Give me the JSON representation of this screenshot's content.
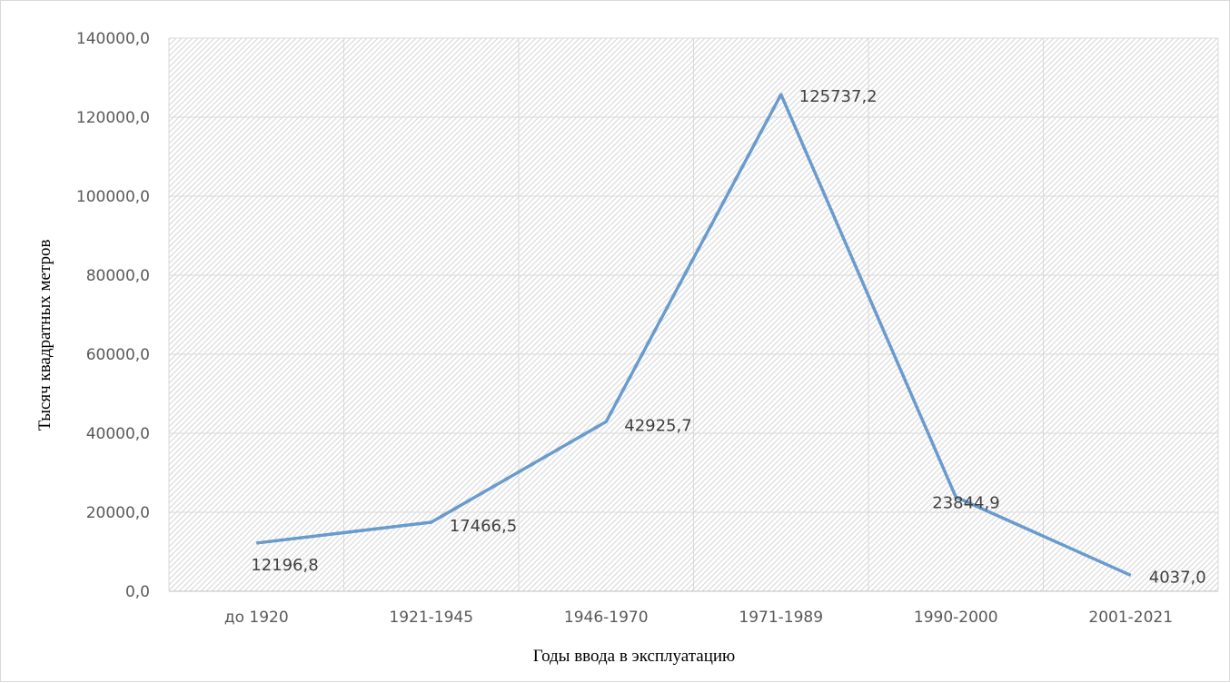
{
  "chart_data": {
    "type": "line",
    "title": "",
    "xlabel": "Годы ввода в эксплуатацию",
    "ylabel": "Тысяч квадратных метров",
    "categories": [
      "до 1920",
      "1921-1945",
      "1946-1970",
      "1971-1989",
      "1990-2000",
      "2001-2021"
    ],
    "series": [
      {
        "values": [
          12196.8,
          17466.5,
          42925.7,
          125737.2,
          23844.9,
          4037.0
        ],
        "data_labels": [
          "12196,8",
          "17466,5",
          "42925,7",
          "125737,2",
          "23844,9",
          "4037,0"
        ]
      }
    ],
    "ylim": [
      0,
      140000
    ],
    "y_ticks": [
      0,
      20000,
      40000,
      60000,
      80000,
      100000,
      120000,
      140000
    ],
    "y_tick_labels": [
      "0,0",
      "20000,0",
      "40000,0",
      "60000,0",
      "80000,0",
      "100000,0",
      "120000,0",
      "140000,0"
    ],
    "grid": true,
    "plot_background": "diagonal hatch",
    "line_color": "#6a9bcd",
    "legend": "none"
  }
}
